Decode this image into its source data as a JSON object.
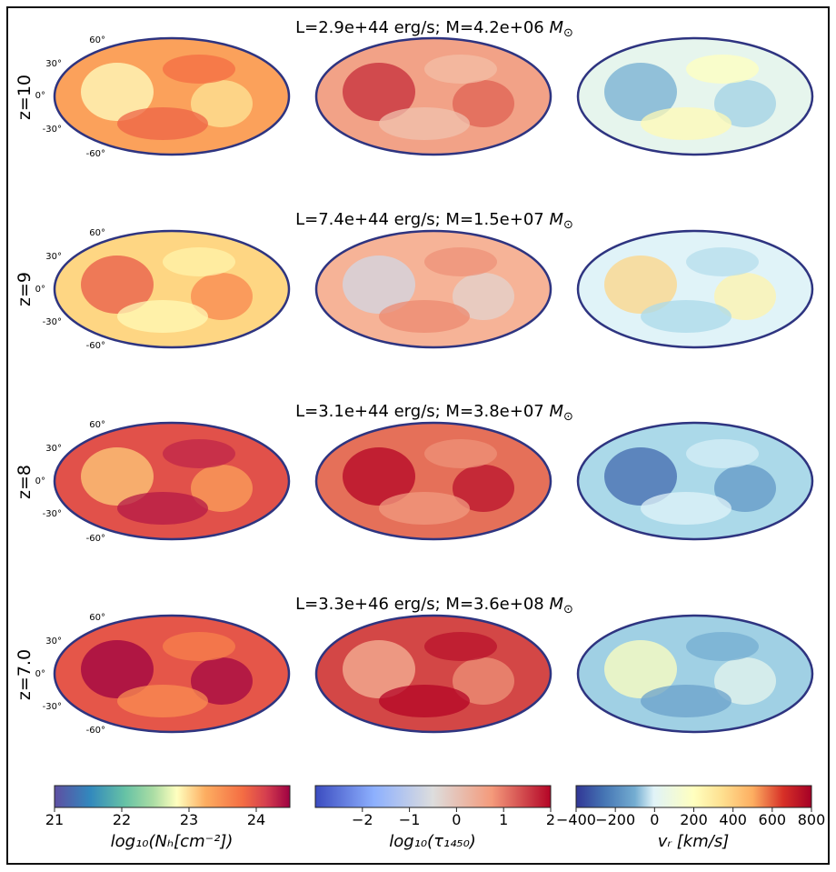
{
  "chart_data": {
    "type": "heatmap",
    "projection": "Mollweide (all-sky)",
    "panels_per_row": [
      "log10 column density",
      "log10 optical depth",
      "radial velocity"
    ],
    "rows": [
      {
        "redshift_label": "z=10",
        "title_prefix": "L=2.9e+44 erg/s; M=4.2e+06",
        "unit": "M⊙",
        "nh_level": 0.72,
        "tau_level": 0.72,
        "vr_level": 0.42
      },
      {
        "redshift_label": "z=9",
        "title_prefix": "L=7.4e+44 erg/s; M=1.5e+07",
        "unit": "M⊙",
        "nh_level": 0.62,
        "tau_level": 0.68,
        "vr_level": 0.4
      },
      {
        "redshift_label": "z=8",
        "title_prefix": "L=3.1e+44 erg/s; M=3.8e+07",
        "unit": "M⊙",
        "nh_level": 0.86,
        "tau_level": 0.84,
        "vr_level": 0.3
      },
      {
        "redshift_label": "z=7.0",
        "title_prefix": "L=3.3e+46 erg/s; M=3.6e+08",
        "unit": "M⊙",
        "nh_level": 0.85,
        "tau_level": 0.9,
        "vr_level": 0.28
      }
    ],
    "lat_ticks": [
      "60°",
      "30°",
      "0°",
      "-30°",
      "-60°"
    ],
    "colorbars": [
      {
        "label": "log₁₀(Nₕ[cm⁻²])",
        "range": [
          21,
          24.5
        ],
        "ticks": [
          "21",
          "22",
          "23",
          "24"
        ],
        "tick_values": [
          21,
          22,
          23,
          24
        ],
        "cmap": "Spectral_r"
      },
      {
        "label": "log₁₀(τ₁₄₅₀)",
        "range": [
          -3,
          2
        ],
        "ticks": [
          "−2",
          "−1",
          "0",
          "1",
          "2"
        ],
        "tick_values": [
          -2,
          -1,
          0,
          1,
          2
        ],
        "cmap": "coolwarm"
      },
      {
        "label": "vᵣ [km/s]",
        "range": [
          -400,
          800
        ],
        "ticks": [
          "−400",
          "−200",
          "0",
          "200",
          "400",
          "600",
          "800"
        ],
        "tick_values": [
          -400,
          -200,
          0,
          200,
          400,
          600,
          800
        ],
        "cmap": "RdYlBu_r"
      }
    ]
  }
}
